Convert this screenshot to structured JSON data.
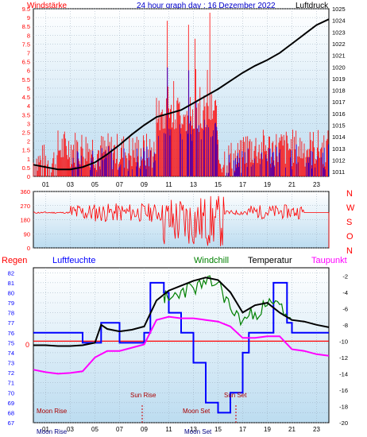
{
  "header": {
    "left_label": "Windstärke",
    "title": "24 hour graph day : 16 Dezember 2022",
    "right_label": "Luftdruck"
  },
  "colors": {
    "wind": "#ff0000",
    "gust": "#0000ff",
    "pressure": "#000000",
    "humidity": "#0000ff",
    "windchill": "#008000",
    "temperature": "#000000",
    "dewpoint": "#ff00ff",
    "rain": "#ff0000",
    "panel_top": "#ffffff",
    "panel_bottom": "#bcdcf0"
  },
  "chart_data": [
    {
      "type": "line",
      "panel": "wind-pressure",
      "xlabel": "",
      "x_ticks": [
        "01",
        "03",
        "05",
        "07",
        "09",
        "11",
        "13",
        "15",
        "17",
        "19",
        "21",
        "23"
      ],
      "left_axis": {
        "label": "Windstärke",
        "ticks": [
          "0",
          "0.5",
          "1",
          "1.5",
          "2",
          "2.5",
          "3",
          "3.5",
          "4",
          "4.5",
          "5",
          "5.5",
          "6",
          "6.5",
          "7",
          "7.5",
          "8",
          "8.5",
          "9",
          "9.5"
        ],
        "range": [
          0,
          9.5
        ]
      },
      "right_axis": {
        "label": "Luftdruck",
        "ticks": [
          "1011",
          "1012",
          "1013",
          "1014",
          "1015",
          "1016",
          "1017",
          "1018",
          "1019",
          "1020",
          "1021",
          "1022",
          "1023",
          "1024",
          "1025"
        ],
        "range": [
          1010.6,
          1025
        ]
      },
      "series": [
        {
          "name": "Luftdruck",
          "x": [
            0,
            1,
            2,
            3,
            4,
            5,
            6,
            7,
            8,
            9,
            10,
            11,
            12,
            13,
            14,
            15,
            16,
            17,
            18,
            19,
            20,
            21,
            22,
            23,
            24
          ],
          "values": [
            1011.6,
            1011.4,
            1011.2,
            1011.2,
            1011.4,
            1011.8,
            1012.5,
            1013.3,
            1014.2,
            1015.0,
            1015.7,
            1016.0,
            1016.3,
            1016.9,
            1017.5,
            1018.1,
            1018.8,
            1019.5,
            1020.1,
            1020.6,
            1021.2,
            1022.0,
            1022.8,
            1023.6,
            1024.1
          ]
        }
      ]
    },
    {
      "type": "line",
      "panel": "wind-direction",
      "x_ticks": [
        "01",
        "03",
        "05",
        "07",
        "09",
        "11",
        "13",
        "15",
        "17",
        "19",
        "21",
        "23"
      ],
      "left_axis": {
        "ticks": [
          "0",
          "90",
          "180",
          "270",
          "360"
        ],
        "range": [
          0,
          360
        ]
      },
      "right_axis": {
        "ticks": [
          "N",
          "W",
          "S",
          "O",
          "N"
        ]
      }
    },
    {
      "type": "line",
      "panel": "temperature-humidity",
      "legend": [
        "Regen",
        "Luftfeuchte",
        "Windchill",
        "Temperatur",
        "Taupunkt"
      ],
      "x_ticks": [
        "01",
        "03",
        "05",
        "07",
        "09",
        "11",
        "13",
        "15",
        "17",
        "19",
        "21",
        "23"
      ],
      "left_axis": {
        "ticks": [
          "67",
          "68",
          "69",
          "70",
          "71",
          "72",
          "73",
          "74",
          "75",
          "76",
          "77",
          "78",
          "79",
          "80",
          "81",
          "82"
        ],
        "range": [
          67,
          82.5
        ]
      },
      "right_axis": {
        "ticks": [
          "-20",
          "-18",
          "-16",
          "-14",
          "-12",
          "-10",
          "-8",
          "-6",
          "-4",
          "-2"
        ],
        "range": [
          -20,
          -1
        ]
      },
      "rain_zero_label": "0",
      "annotations": {
        "sunrise": "Sun Rise",
        "sunset": "Sun Set",
        "moonrise": "Moon Rise",
        "moonset": "Moon Set",
        "bottom_moonrise": "Moon Rise",
        "bottom_moonset": "Moon Set"
      },
      "series": [
        {
          "name": "Temperatur",
          "x": [
            0,
            1,
            2,
            3,
            4,
            5,
            5.5,
            6,
            7,
            8,
            9,
            10,
            11,
            12,
            13,
            14,
            15,
            16,
            17,
            18,
            19,
            20,
            21,
            22,
            23,
            24
          ],
          "values": [
            -10.5,
            -10.5,
            -10.6,
            -10.6,
            -10.5,
            -10.2,
            -8.0,
            -8.5,
            -8.8,
            -8.6,
            -8.2,
            -5.0,
            -3.8,
            -3.2,
            -2.6,
            -2.2,
            -2.5,
            -4.0,
            -6.5,
            -5.6,
            -5.3,
            -6.5,
            -7.4,
            -7.6,
            -8.0,
            -8.3
          ]
        },
        {
          "name": "Taupunkt",
          "x": [
            0,
            1,
            2,
            3,
            4,
            5,
            6,
            7,
            8,
            9,
            10,
            11,
            12,
            13,
            14,
            15,
            16,
            17,
            18,
            19,
            20,
            21,
            22,
            23,
            24
          ],
          "values": [
            -13.5,
            -13.8,
            -14.0,
            -13.9,
            -13.7,
            -12.0,
            -11.2,
            -11.2,
            -10.8,
            -10.4,
            -7.4,
            -7.0,
            -7.2,
            -7.2,
            -7.4,
            -7.6,
            -8.2,
            -9.6,
            -9.6,
            -9.4,
            -9.4,
            -11.0,
            -11.2,
            -11.6,
            -11.8
          ]
        },
        {
          "name": "Luftfeuchte",
          "x": [
            0,
            3,
            4,
            5,
            5.5,
            7,
            9,
            9.5,
            10.2,
            10.6,
            11,
            12,
            13,
            14,
            15,
            16,
            17,
            17.5,
            19,
            19.5,
            20.3,
            20.6,
            21,
            23,
            24
          ],
          "values": [
            76,
            76,
            75,
            75,
            77,
            75,
            76,
            81,
            81,
            80,
            78,
            76,
            73,
            69,
            68,
            70,
            74,
            76,
            76,
            81,
            81,
            77,
            76,
            76,
            76
          ]
        },
        {
          "name": "Windchill",
          "x": [
            10.6,
            11,
            12,
            13,
            14,
            15,
            16,
            17,
            18,
            19,
            20,
            21
          ],
          "values": [
            -4.5,
            -5.0,
            -3.8,
            -3.5,
            -3.0,
            -2.8,
            -6.0,
            -7.5,
            -6.5,
            -5.6,
            -5.5,
            -7.5
          ]
        },
        {
          "name": "Regen",
          "x": [
            0,
            24
          ],
          "values": [
            0,
            0
          ]
        }
      ]
    }
  ]
}
